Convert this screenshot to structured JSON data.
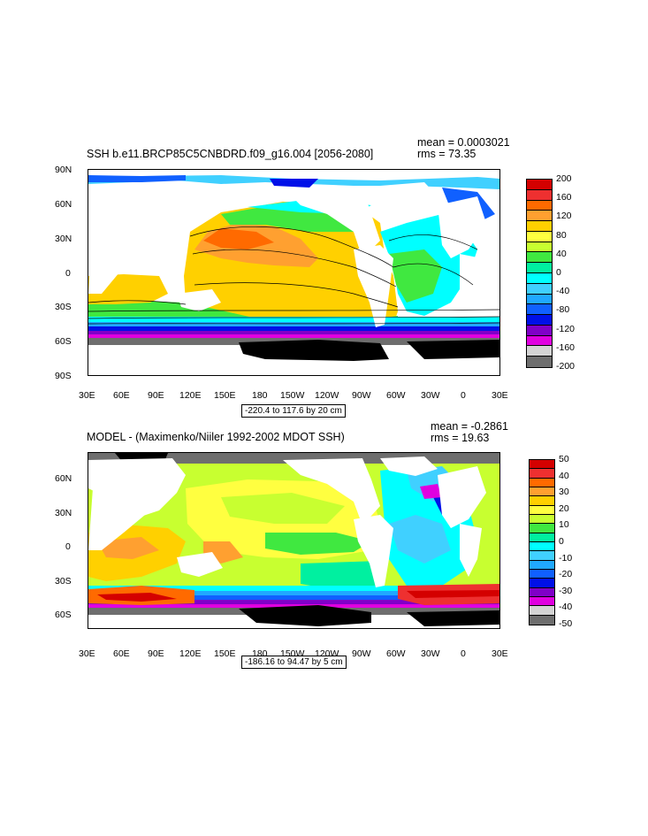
{
  "panel1": {
    "title": "SSH b.e11.BRCP85C5CNBDRD.f09_g16.004 [2056-2080]",
    "mean": "mean = 0.0003021",
    "rms": "rms = 73.35",
    "contour_note": "-220.4 to 117.6 by 20 cm",
    "lat_ticks": [
      "90N",
      "60N",
      "30N",
      "0",
      "30S",
      "60S",
      "90S"
    ],
    "lon_ticks": [
      "30E",
      "60E",
      "90E",
      "120E",
      "150E",
      "180",
      "150W",
      "120W",
      "90W",
      "60W",
      "30W",
      "0",
      "30E"
    ],
    "legend_labels": [
      "200",
      "160",
      "120",
      "80",
      "40",
      "0",
      "-40",
      "-80",
      "-120",
      "-160",
      "-200"
    ],
    "legend_colors": [
      "#d40000",
      "#ee3030",
      "#ff6a00",
      "#ffa030",
      "#ffd000",
      "#ffff40",
      "#c8ff30",
      "#40e840",
      "#00f0a0",
      "#00ffff",
      "#40d0ff",
      "#20a8ff",
      "#1060ff",
      "#0010e8",
      "#8000c8",
      "#e000e0",
      "#d4d4d4",
      "#6e6e6e"
    ]
  },
  "panel2": {
    "title": "MODEL - (Maximenko/Niiler 1992-2002 MDOT SSH)",
    "mean": "mean = -0.2861",
    "rms": "rms = 19.63",
    "contour_note": "-186.16 to 94.47 by 5 cm",
    "lat_ticks": [
      "60N",
      "30N",
      "0",
      "30S",
      "60S"
    ],
    "lon_ticks": [
      "30E",
      "60E",
      "90E",
      "120E",
      "150E",
      "180",
      "150W",
      "120W",
      "90W",
      "60W",
      "30W",
      "0",
      "30E"
    ],
    "legend_labels": [
      "50",
      "40",
      "30",
      "20",
      "10",
      "0",
      "-10",
      "-20",
      "-30",
      "-40",
      "-50"
    ],
    "legend_colors": [
      "#d40000",
      "#ee3030",
      "#ff6a00",
      "#ffa030",
      "#ffd000",
      "#ffff40",
      "#c8ff30",
      "#40e840",
      "#00f0a0",
      "#00ffff",
      "#40d0ff",
      "#20a8ff",
      "#1060ff",
      "#0010e8",
      "#8000c8",
      "#e000e0",
      "#d4d4d4",
      "#6e6e6e"
    ]
  }
}
